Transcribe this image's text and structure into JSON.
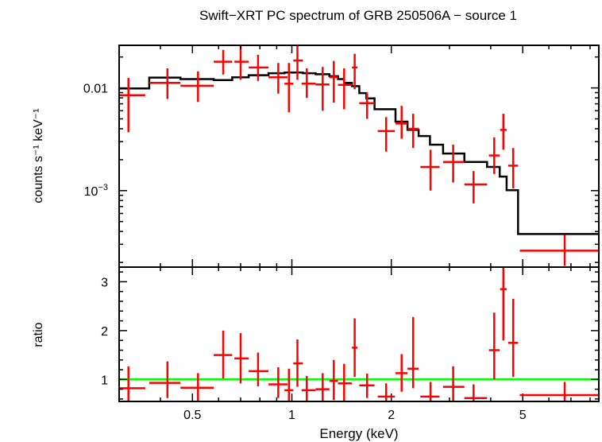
{
  "title": "Swift−XRT PC spectrum of GRB 250506A − source 1",
  "colors": {
    "data": "#ff0000",
    "model": "#000000",
    "ratio_line": "#00ff00",
    "frame": "#000000"
  },
  "chart_data": [
    {
      "type": "scatter",
      "panel": "spectrum",
      "xscale": "log",
      "yscale": "log",
      "xlim": [
        0.3,
        8.5
      ],
      "ylim": [
        0.00018,
        0.026
      ],
      "ylabel": "counts s⁻¹ keV⁻¹",
      "ytick_labels": [
        {
          "value": 0.01,
          "label": "0.01",
          "sup": ""
        },
        {
          "value": 0.001,
          "label": "10",
          "sup": "−3"
        }
      ],
      "series": [
        {
          "points": [
            {
              "x": 0.32,
              "xlo": 0.3,
              "xhi": 0.36,
              "y": 0.0085,
              "ylo": 0.0037,
              "yhi": 0.0125
            },
            {
              "x": 0.42,
              "xlo": 0.37,
              "xhi": 0.46,
              "y": 0.0112,
              "ylo": 0.0078,
              "yhi": 0.0155
            },
            {
              "x": 0.52,
              "xlo": 0.46,
              "xhi": 0.58,
              "y": 0.0105,
              "ylo": 0.0073,
              "yhi": 0.0145
            },
            {
              "x": 0.62,
              "xlo": 0.58,
              "xhi": 0.66,
              "y": 0.018,
              "ylo": 0.0135,
              "yhi": 0.0235
            },
            {
              "x": 0.7,
              "xlo": 0.67,
              "xhi": 0.74,
              "y": 0.018,
              "ylo": 0.012,
              "yhi": 0.026
            },
            {
              "x": 0.79,
              "xlo": 0.74,
              "xhi": 0.85,
              "y": 0.0158,
              "ylo": 0.0117,
              "yhi": 0.021
            },
            {
              "x": 0.91,
              "xlo": 0.85,
              "xhi": 0.97,
              "y": 0.0127,
              "ylo": 0.0088,
              "yhi": 0.0175
            },
            {
              "x": 0.98,
              "xlo": 0.95,
              "xhi": 1.01,
              "y": 0.011,
              "ylo": 0.0058,
              "yhi": 0.0175
            },
            {
              "x": 1.04,
              "xlo": 1.01,
              "xhi": 1.08,
              "y": 0.0185,
              "ylo": 0.012,
              "yhi": 0.026
            },
            {
              "x": 1.11,
              "xlo": 1.07,
              "xhi": 1.18,
              "y": 0.011,
              "ylo": 0.008,
              "yhi": 0.0155
            },
            {
              "x": 1.24,
              "xlo": 1.18,
              "xhi": 1.3,
              "y": 0.0108,
              "ylo": 0.006,
              "yhi": 0.016
            },
            {
              "x": 1.34,
              "xlo": 1.3,
              "xhi": 1.38,
              "y": 0.0127,
              "ylo": 0.0072,
              "yhi": 0.0183
            },
            {
              "x": 1.44,
              "xlo": 1.38,
              "xhi": 1.52,
              "y": 0.0107,
              "ylo": 0.0062,
              "yhi": 0.0155
            },
            {
              "x": 1.55,
              "xlo": 1.52,
              "xhi": 1.58,
              "y": 0.0158,
              "ylo": 0.0097,
              "yhi": 0.0215
            },
            {
              "x": 1.69,
              "xlo": 1.6,
              "xhi": 1.78,
              "y": 0.0071,
              "ylo": 0.005,
              "yhi": 0.009
            },
            {
              "x": 1.93,
              "xlo": 1.82,
              "xhi": 2.05,
              "y": 0.0038,
              "ylo": 0.0024,
              "yhi": 0.0052
            },
            {
              "x": 2.15,
              "xlo": 2.06,
              "xhi": 2.24,
              "y": 0.0045,
              "ylo": 0.0032,
              "yhi": 0.0067
            },
            {
              "x": 2.33,
              "xlo": 2.24,
              "xhi": 2.42,
              "y": 0.004,
              "ylo": 0.0026,
              "yhi": 0.0056
            },
            {
              "x": 2.63,
              "xlo": 2.45,
              "xhi": 2.8,
              "y": 0.0017,
              "ylo": 0.001,
              "yhi": 0.0025
            },
            {
              "x": 3.08,
              "xlo": 2.87,
              "xhi": 3.33,
              "y": 0.0019,
              "ylo": 0.0012,
              "yhi": 0.0028
            },
            {
              "x": 3.55,
              "xlo": 3.33,
              "xhi": 3.9,
              "y": 0.00115,
              "ylo": 0.00075,
              "yhi": 0.00155
            },
            {
              "x": 4.1,
              "xlo": 3.95,
              "xhi": 4.26,
              "y": 0.0022,
              "ylo": 0.00145,
              "yhi": 0.0033
            },
            {
              "x": 4.37,
              "xlo": 4.27,
              "xhi": 4.47,
              "y": 0.0039,
              "ylo": 0.0025,
              "yhi": 0.0056
            },
            {
              "x": 4.68,
              "xlo": 4.52,
              "xhi": 4.84,
              "y": 0.00175,
              "ylo": 0.00105,
              "yhi": 0.0026
            },
            {
              "x": 6.7,
              "xlo": 4.9,
              "xhi": 8.5,
              "y": 0.00026,
              "ylo": 0.000185,
              "yhi": 0.00037
            }
          ]
        }
      ],
      "model": {
        "edges": [
          0.3,
          0.37,
          0.46,
          0.58,
          0.66,
          0.74,
          0.85,
          0.95,
          1.08,
          1.18,
          1.3,
          1.38,
          1.44,
          1.52,
          1.6,
          1.68,
          1.78,
          2.06,
          2.24,
          2.42,
          2.62,
          2.87,
          3.33,
          3.9,
          4.26,
          4.47,
          4.84,
          8.5
        ],
        "values": [
          0.0099,
          0.0126,
          0.0122,
          0.0119,
          0.0127,
          0.0133,
          0.0139,
          0.0141,
          0.0139,
          0.0136,
          0.013,
          0.0122,
          0.0112,
          0.0104,
          0.0089,
          0.0079,
          0.0062,
          0.0047,
          0.0039,
          0.0034,
          0.0028,
          0.0023,
          0.0019,
          0.0017,
          0.00137,
          0.00101,
          0.000378
        ]
      }
    },
    {
      "type": "scatter",
      "panel": "ratio",
      "xscale": "log",
      "yscale": "linear",
      "xlim": [
        0.3,
        8.5
      ],
      "ylim": [
        0.55,
        3.3
      ],
      "xlabel": "Energy (keV)",
      "ylabel": "ratio",
      "xticks": [
        0.5,
        1,
        2,
        5
      ],
      "xtick_labels": [
        "0.5",
        "1",
        "2",
        "5"
      ],
      "yticks": [
        1,
        2,
        3
      ],
      "ytick_labels": [
        "1",
        "2",
        "3"
      ],
      "reference_line": 1,
      "series": [
        {
          "points": [
            {
              "x": 0.32,
              "xlo": 0.3,
              "xhi": 0.36,
              "y": 0.82,
              "ylo": 0.55,
              "yhi": 1.27
            },
            {
              "x": 0.42,
              "xlo": 0.37,
              "xhi": 0.46,
              "y": 0.93,
              "ylo": 0.62,
              "yhi": 1.37
            },
            {
              "x": 0.52,
              "xlo": 0.46,
              "xhi": 0.58,
              "y": 0.83,
              "ylo": 0.55,
              "yhi": 1.13
            },
            {
              "x": 0.62,
              "xlo": 0.58,
              "xhi": 0.66,
              "y": 1.5,
              "ylo": 1.02,
              "yhi": 2.0
            },
            {
              "x": 0.7,
              "xlo": 0.67,
              "xhi": 0.74,
              "y": 1.43,
              "ylo": 0.92,
              "yhi": 1.95
            },
            {
              "x": 0.79,
              "xlo": 0.74,
              "xhi": 0.85,
              "y": 1.17,
              "ylo": 0.86,
              "yhi": 1.55
            },
            {
              "x": 0.91,
              "xlo": 0.85,
              "xhi": 0.97,
              "y": 0.9,
              "ylo": 0.62,
              "yhi": 1.25
            },
            {
              "x": 0.98,
              "xlo": 0.95,
              "xhi": 1.01,
              "y": 0.78,
              "ylo": 0.55,
              "yhi": 1.22
            },
            {
              "x": 1.04,
              "xlo": 1.01,
              "xhi": 1.08,
              "y": 1.33,
              "ylo": 0.85,
              "yhi": 1.82
            },
            {
              "x": 1.11,
              "xlo": 1.07,
              "xhi": 1.18,
              "y": 0.78,
              "ylo": 0.55,
              "yhi": 1.07
            },
            {
              "x": 1.24,
              "xlo": 1.18,
              "xhi": 1.3,
              "y": 0.8,
              "ylo": 0.55,
              "yhi": 1.13
            },
            {
              "x": 1.34,
              "xlo": 1.3,
              "xhi": 1.38,
              "y": 0.97,
              "ylo": 0.58,
              "yhi": 1.4
            },
            {
              "x": 1.44,
              "xlo": 1.38,
              "xhi": 1.52,
              "y": 0.92,
              "ylo": 0.55,
              "yhi": 1.32
            },
            {
              "x": 1.55,
              "xlo": 1.52,
              "xhi": 1.58,
              "y": 1.65,
              "ylo": 1.05,
              "yhi": 2.25
            },
            {
              "x": 1.69,
              "xlo": 1.6,
              "xhi": 1.78,
              "y": 0.88,
              "ylo": 0.62,
              "yhi": 1.12
            },
            {
              "x": 1.93,
              "xlo": 1.82,
              "xhi": 2.05,
              "y": 0.65,
              "ylo": 0.55,
              "yhi": 0.92
            },
            {
              "x": 2.15,
              "xlo": 2.06,
              "xhi": 2.24,
              "y": 1.13,
              "ylo": 0.75,
              "yhi": 1.52
            },
            {
              "x": 2.33,
              "xlo": 2.24,
              "xhi": 2.42,
              "y": 1.22,
              "ylo": 0.82,
              "yhi": 2.28
            },
            {
              "x": 2.63,
              "xlo": 2.45,
              "xhi": 2.8,
              "y": 0.65,
              "ylo": 0.55,
              "yhi": 0.95
            },
            {
              "x": 3.08,
              "xlo": 2.87,
              "xhi": 3.33,
              "y": 0.85,
              "ylo": 0.55,
              "yhi": 1.27
            },
            {
              "x": 3.55,
              "xlo": 3.33,
              "xhi": 3.9,
              "y": 0.62,
              "ylo": 0.55,
              "yhi": 0.9
            },
            {
              "x": 4.1,
              "xlo": 3.95,
              "xhi": 4.26,
              "y": 1.6,
              "ylo": 1.0,
              "yhi": 2.37
            },
            {
              "x": 4.37,
              "xlo": 4.27,
              "xhi": 4.47,
              "y": 2.85,
              "ylo": 1.8,
              "yhi": 3.3
            },
            {
              "x": 4.68,
              "xlo": 4.52,
              "xhi": 4.84,
              "y": 1.75,
              "ylo": 1.05,
              "yhi": 2.65
            },
            {
              "x": 6.7,
              "xlo": 4.9,
              "xhi": 8.5,
              "y": 0.68,
              "ylo": 0.55,
              "yhi": 0.95
            }
          ]
        }
      ]
    }
  ]
}
